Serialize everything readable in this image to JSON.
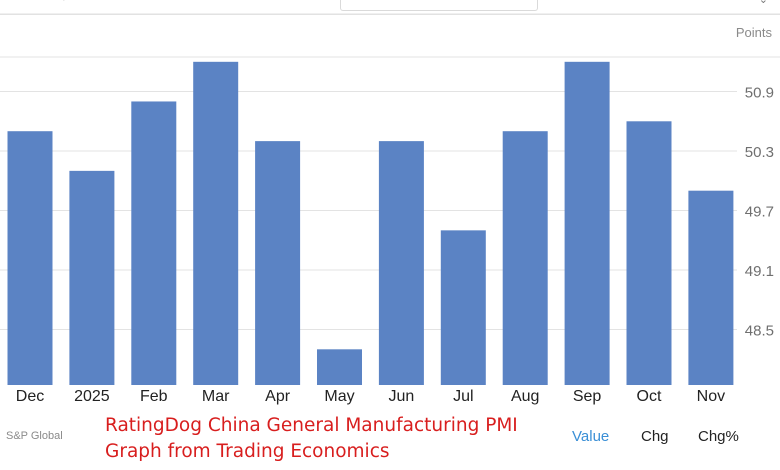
{
  "unit_label": "Points",
  "source_label": "S&P Global",
  "overlay_title": {
    "line1": "RatingDog China General Manufacturing PMI",
    "line2": "Graph from Trading Economics"
  },
  "tabs": [
    {
      "label": "Value",
      "active": true
    },
    {
      "label": "Chg",
      "active": false
    },
    {
      "label": "Chg%",
      "active": false
    }
  ],
  "colors": {
    "bar": "#5b83c4",
    "grid": "#e3e3e3",
    "tick_text": "#6f6f6f",
    "category_text": "#222222",
    "overlay_text": "#d81e1e",
    "active_tab": "#3a8fd6"
  },
  "chart_data": {
    "type": "bar",
    "title": "",
    "xlabel": "",
    "ylabel": "",
    "categories": [
      "Dec",
      "2025",
      "Feb",
      "Mar",
      "Apr",
      "May",
      "Jun",
      "Jul",
      "Aug",
      "Sep",
      "Oct",
      "Nov"
    ],
    "values": [
      50.5,
      50.1,
      50.8,
      51.2,
      50.4,
      48.3,
      50.4,
      49.5,
      50.5,
      51.2,
      50.6,
      49.9
    ],
    "yticks": [
      48.5,
      49.1,
      49.7,
      50.3,
      50.9
    ],
    "ylim": [
      47.94,
      51.42
    ],
    "grid": true,
    "y_axis_side": "right"
  }
}
